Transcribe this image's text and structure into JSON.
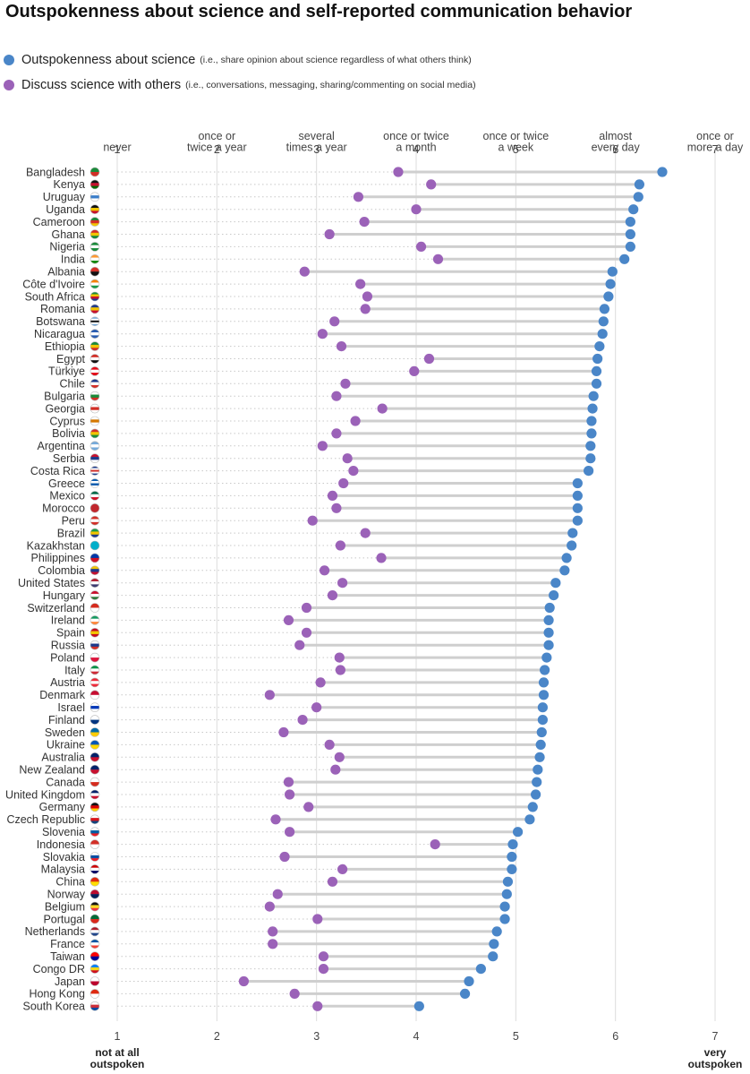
{
  "title": "Outspokenness about science and self-reported communication behavior",
  "legend": [
    {
      "label": "Outspokenness about science",
      "note": "(i.e., share opinion about science regardless of what others think)",
      "color": "#4a86c8"
    },
    {
      "label": "Discuss science with others",
      "note": "(i.e., conversations, messaging, sharing/commenting on social media)",
      "color": "#9b62b8"
    }
  ],
  "chart_data": {
    "type": "dumbbell",
    "x_range": [
      1,
      7
    ],
    "top_axis": {
      "ticks": [
        1,
        2,
        3,
        4,
        5,
        6,
        7
      ],
      "labels": [
        [
          "never"
        ],
        [
          "once or",
          "twice a year"
        ],
        [
          "several",
          "times a year"
        ],
        [
          "once or twice",
          "a month"
        ],
        [
          "once or twice",
          "a week"
        ],
        [
          "almost",
          "every day"
        ],
        [
          "once or",
          "more a day"
        ]
      ]
    },
    "bottom_axis": {
      "ticks": [
        1,
        2,
        3,
        4,
        5,
        6,
        7
      ],
      "end_labels": {
        "left": [
          "not at all",
          "outspoken"
        ],
        "right": [
          "very",
          "outspoken"
        ]
      }
    },
    "grid": true,
    "countries": [
      "Bangladesh",
      "Kenya",
      "Uruguay",
      "Uganda",
      "Cameroon",
      "Ghana",
      "Nigeria",
      "India",
      "Albania",
      "Côte d'Ivoire",
      "South Africa",
      "Romania",
      "Botswana",
      "Nicaragua",
      "Ethiopia",
      "Egypt",
      "Türkiye",
      "Chile",
      "Bulgaria",
      "Georgia",
      "Cyprus",
      "Bolivia",
      "Argentina",
      "Serbia",
      "Costa Rica",
      "Greece",
      "Mexico",
      "Morocco",
      "Peru",
      "Brazil",
      "Kazakhstan",
      "Philippines",
      "Colombia",
      "United States",
      "Hungary",
      "Switzerland",
      "Ireland",
      "Spain",
      "Russia",
      "Poland",
      "Italy",
      "Austria",
      "Denmark",
      "Israel",
      "Finland",
      "Sweden",
      "Ukraine",
      "Australia",
      "New Zealand",
      "Canada",
      "United Kingdom",
      "Germany",
      "Czech Republic",
      "Slovenia",
      "Indonesia",
      "Slovakia",
      "Malaysia",
      "China",
      "Norway",
      "Belgium",
      "Portugal",
      "Netherlands",
      "France",
      "Taiwan",
      "Congo DR",
      "Japan",
      "Hong Kong",
      "South Korea"
    ],
    "series": [
      {
        "name": "Outspokenness about science",
        "color": "#4a86c8",
        "values": [
          6.47,
          6.24,
          6.23,
          6.18,
          6.15,
          6.15,
          6.15,
          6.09,
          5.97,
          5.95,
          5.93,
          5.89,
          5.88,
          5.87,
          5.84,
          5.82,
          5.81,
          5.81,
          5.78,
          5.77,
          5.76,
          5.76,
          5.75,
          5.75,
          5.73,
          5.62,
          5.62,
          5.62,
          5.62,
          5.57,
          5.56,
          5.51,
          5.49,
          5.4,
          5.38,
          5.34,
          5.33,
          5.33,
          5.33,
          5.31,
          5.29,
          5.28,
          5.28,
          5.27,
          5.27,
          5.26,
          5.25,
          5.24,
          5.22,
          5.21,
          5.2,
          5.17,
          5.14,
          5.02,
          4.97,
          4.96,
          4.96,
          4.92,
          4.91,
          4.89,
          4.89,
          4.81,
          4.78,
          4.77,
          4.65,
          4.53,
          4.49,
          4.03
        ]
      },
      {
        "name": "Discuss science with others",
        "color": "#9b62b8",
        "values": [
          3.82,
          4.15,
          3.42,
          4.0,
          3.48,
          3.13,
          4.05,
          4.22,
          2.88,
          3.44,
          3.51,
          3.49,
          3.18,
          3.06,
          3.25,
          4.13,
          3.98,
          3.29,
          3.2,
          3.66,
          3.39,
          3.2,
          3.06,
          3.31,
          3.37,
          3.27,
          3.16,
          3.2,
          2.96,
          3.49,
          3.24,
          3.65,
          3.08,
          3.26,
          3.16,
          2.9,
          2.72,
          2.9,
          2.83,
          3.23,
          3.24,
          3.04,
          2.53,
          3.0,
          2.86,
          2.67,
          3.13,
          3.23,
          3.19,
          2.72,
          2.73,
          2.92,
          2.59,
          2.73,
          4.19,
          2.68,
          3.26,
          3.16,
          2.61,
          2.53,
          3.01,
          2.56,
          2.56,
          3.07,
          3.07,
          2.27,
          2.78,
          3.01
        ]
      }
    ],
    "flags": [
      {
        "colors": [
          "#1a8a3a",
          "#d22f27"
        ]
      },
      {
        "colors": [
          "#111111",
          "#c8102e",
          "#006600"
        ]
      },
      {
        "colors": [
          "#ffffff",
          "#3a7dc9",
          "#ffffff"
        ]
      },
      {
        "colors": [
          "#111111",
          "#f2c500",
          "#c8102e"
        ]
      },
      {
        "colors": [
          "#1a8a3a",
          "#d22f27",
          "#f2c500"
        ]
      },
      {
        "colors": [
          "#d22f27",
          "#f2c500",
          "#1a8a3a"
        ]
      },
      {
        "colors": [
          "#1a8a3a",
          "#ffffff",
          "#1a8a3a"
        ]
      },
      {
        "colors": [
          "#ff9933",
          "#ffffff",
          "#138808"
        ]
      },
      {
        "colors": [
          "#d22f27",
          "#111111"
        ]
      },
      {
        "colors": [
          "#f77f00",
          "#ffffff",
          "#1a9a48"
        ]
      },
      {
        "colors": [
          "#1a8a3a",
          "#f2c500",
          "#c8102e",
          "#1e3a8a"
        ]
      },
      {
        "colors": [
          "#1e3a8a",
          "#f2c500",
          "#c8102e"
        ]
      },
      {
        "colors": [
          "#75aadb",
          "#ffffff",
          "#111111",
          "#ffffff",
          "#75aadb"
        ]
      },
      {
        "colors": [
          "#2a5db0",
          "#ffffff",
          "#2a5db0"
        ]
      },
      {
        "colors": [
          "#1a8a3a",
          "#f2c500",
          "#d22f27"
        ]
      },
      {
        "colors": [
          "#d22f27",
          "#ffffff",
          "#111111"
        ]
      },
      {
        "colors": [
          "#e30a17",
          "#ffffff",
          "#e30a17"
        ]
      },
      {
        "colors": [
          "#1e3a8a",
          "#ffffff",
          "#d22f27"
        ]
      },
      {
        "colors": [
          "#ffffff",
          "#1a8a3a",
          "#d22f27"
        ]
      },
      {
        "colors": [
          "#ffffff",
          "#d22f27",
          "#ffffff"
        ]
      },
      {
        "colors": [
          "#ffffff",
          "#d57800",
          "#ffffff"
        ]
      },
      {
        "colors": [
          "#d22f27",
          "#f2c500",
          "#1a8a3a"
        ]
      },
      {
        "colors": [
          "#75aadb",
          "#ffffff",
          "#75aadb"
        ]
      },
      {
        "colors": [
          "#c8102e",
          "#1e3a8a",
          "#ffffff"
        ]
      },
      {
        "colors": [
          "#1e3a8a",
          "#ffffff",
          "#d22f27",
          "#ffffff",
          "#1e3a8a"
        ]
      },
      {
        "colors": [
          "#0d5eaf",
          "#ffffff",
          "#0d5eaf",
          "#ffffff"
        ]
      },
      {
        "colors": [
          "#006847",
          "#ffffff",
          "#ce1126"
        ]
      },
      {
        "colors": [
          "#c1272d",
          "#c1272d"
        ]
      },
      {
        "colors": [
          "#d22f27",
          "#ffffff",
          "#d22f27"
        ]
      },
      {
        "colors": [
          "#1a9a48",
          "#f2c500",
          "#1e3a8a"
        ]
      },
      {
        "colors": [
          "#00afca",
          "#00afca"
        ]
      },
      {
        "colors": [
          "#0038a8",
          "#ce1126"
        ]
      },
      {
        "colors": [
          "#f2c500",
          "#1e3a8a",
          "#c8102e"
        ]
      },
      {
        "colors": [
          "#b22234",
          "#ffffff",
          "#3c3b6e"
        ]
      },
      {
        "colors": [
          "#c8102e",
          "#ffffff",
          "#2f7a3c"
        ]
      },
      {
        "colors": [
          "#d52b1e",
          "#ffffff"
        ]
      },
      {
        "colors": [
          "#169b62",
          "#ffffff",
          "#ff883e"
        ]
      },
      {
        "colors": [
          "#c60b1e",
          "#f2c500",
          "#c60b1e"
        ]
      },
      {
        "colors": [
          "#ffffff",
          "#1e3a8a",
          "#d22f27"
        ]
      },
      {
        "colors": [
          "#ffffff",
          "#dc143c"
        ]
      },
      {
        "colors": [
          "#009246",
          "#ffffff",
          "#ce2b37"
        ]
      },
      {
        "colors": [
          "#ed2939",
          "#ffffff",
          "#ed2939"
        ]
      },
      {
        "colors": [
          "#c60c30",
          "#ffffff"
        ]
      },
      {
        "colors": [
          "#ffffff",
          "#0038b8",
          "#ffffff"
        ]
      },
      {
        "colors": [
          "#ffffff",
          "#003580"
        ]
      },
      {
        "colors": [
          "#006aa7",
          "#fecc00"
        ]
      },
      {
        "colors": [
          "#0057b7",
          "#ffd700"
        ]
      },
      {
        "colors": [
          "#012169",
          "#c8102e"
        ]
      },
      {
        "colors": [
          "#012169",
          "#c8102e"
        ]
      },
      {
        "colors": [
          "#ffffff",
          "#d52b1e"
        ]
      },
      {
        "colors": [
          "#012169",
          "#ffffff",
          "#c8102e"
        ]
      },
      {
        "colors": [
          "#111111",
          "#dd0000",
          "#ffce00"
        ]
      },
      {
        "colors": [
          "#ffffff",
          "#d7141a",
          "#11457e"
        ]
      },
      {
        "colors": [
          "#ffffff",
          "#005da4",
          "#ed1c24"
        ]
      },
      {
        "colors": [
          "#d22f27",
          "#ffffff"
        ]
      },
      {
        "colors": [
          "#ffffff",
          "#0b4ea2",
          "#ee1c25"
        ]
      },
      {
        "colors": [
          "#cc0001",
          "#ffffff",
          "#010066"
        ]
      },
      {
        "colors": [
          "#de2910",
          "#ffde00"
        ]
      },
      {
        "colors": [
          "#ba0c2f",
          "#00205b"
        ]
      },
      {
        "colors": [
          "#111111",
          "#fdda24",
          "#ef3340"
        ]
      },
      {
        "colors": [
          "#046a38",
          "#da291c"
        ]
      },
      {
        "colors": [
          "#ae1c28",
          "#ffffff",
          "#21468b"
        ]
      },
      {
        "colors": [
          "#0055a4",
          "#ffffff",
          "#ef4135"
        ]
      },
      {
        "colors": [
          "#fe0000",
          "#000095"
        ]
      },
      {
        "colors": [
          "#007fff",
          "#f7d618",
          "#ce1021"
        ]
      },
      {
        "colors": [
          "#ffffff",
          "#bc002d"
        ]
      },
      {
        "colors": [
          "#de2910",
          "#ffffff"
        ]
      },
      {
        "colors": [
          "#ffffff",
          "#cd2e3a",
          "#0047a0"
        ]
      }
    ]
  }
}
